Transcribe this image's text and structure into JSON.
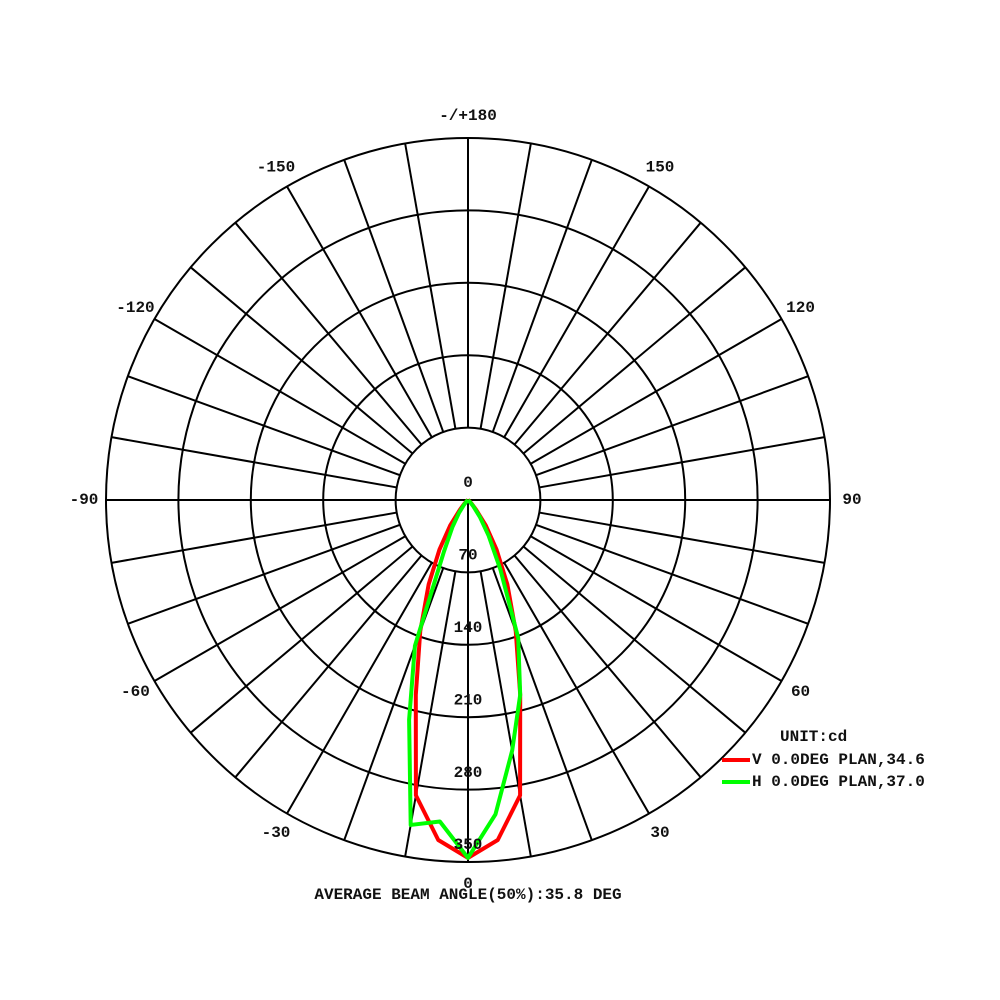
{
  "chart_data": {
    "type": "polar",
    "unit_label": "UNIT:cd",
    "footer": "AVERAGE BEAM ANGLE(50%):35.8 DEG",
    "rlim": [
      0,
      350
    ],
    "rticks": [
      0,
      70,
      140,
      210,
      280,
      350
    ],
    "angle_ticks": [
      {
        "value": 180,
        "label": "-/+180"
      },
      150,
      120,
      90,
      60,
      30,
      0,
      -30,
      -60,
      -90,
      -120,
      -150
    ],
    "angle_grid_step": 10,
    "angles": [
      -90,
      -85,
      -80,
      -75,
      -70,
      -65,
      -60,
      -55,
      -50,
      -45,
      -40,
      -35,
      -30,
      -25,
      -20,
      -15,
      -10,
      -5,
      0,
      5,
      10,
      15,
      20,
      25,
      30,
      35,
      40,
      45,
      50,
      55,
      60,
      65,
      70,
      75,
      80,
      85,
      90
    ],
    "series": [
      {
        "name": "V 0.0DEG PLAN,34.6",
        "color": "#ff0000",
        "values": [
          0,
          0,
          0,
          0,
          0,
          0,
          0,
          1,
          2,
          5,
          12,
          30,
          55,
          90,
          135,
          195,
          290,
          330,
          346,
          330,
          290,
          195,
          135,
          90,
          55,
          30,
          12,
          5,
          2,
          1,
          0,
          0,
          0,
          0,
          0,
          0,
          0
        ]
      },
      {
        "name": "H 0.0DEG PLAN,37.0",
        "color": "#00ff00",
        "values": [
          0,
          0,
          0,
          0,
          0,
          0,
          0,
          0,
          0,
          2,
          6,
          15,
          30,
          55,
          150,
          220,
          319,
          312,
          346,
          305,
          246,
          195,
          142,
          74,
          40,
          20,
          8,
          3,
          0,
          0,
          0,
          0,
          0,
          0,
          0,
          0,
          0
        ]
      }
    ]
  }
}
